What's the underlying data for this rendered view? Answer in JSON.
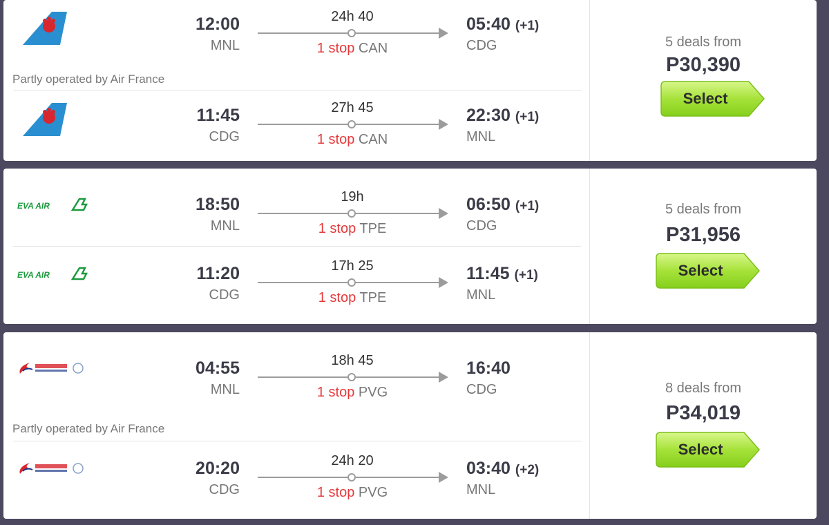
{
  "colors": {
    "accent_green": "#9be234",
    "stop_red": "#e5393b",
    "background": "#4b485f"
  },
  "results": [
    {
      "legs": [
        {
          "airline": "China Southern",
          "logo": "china-southern-logo",
          "dep_time": "12:00",
          "dep_airport": "MNL",
          "duration": "24h 40",
          "stops": "1 stop",
          "via": "CAN",
          "arr_time": "05:40",
          "arr_offset": "(+1)",
          "arr_airport": "CDG"
        },
        {
          "airline": "China Southern",
          "logo": "china-southern-logo",
          "dep_time": "11:45",
          "dep_airport": "CDG",
          "duration": "27h 45",
          "stops": "1 stop",
          "via": "CAN",
          "arr_time": "22:30",
          "arr_offset": "(+1)",
          "arr_airport": "MNL"
        }
      ],
      "note": "Partly operated by Air France",
      "deals": "5 deals from",
      "price": "P30,390",
      "select_label": "Select"
    },
    {
      "legs": [
        {
          "airline": "EVA AIR",
          "logo": "eva-air-logo",
          "dep_time": "18:50",
          "dep_airport": "MNL",
          "duration": "19h",
          "stops": "1 stop",
          "via": "TPE",
          "arr_time": "06:50",
          "arr_offset": "(+1)",
          "arr_airport": "CDG"
        },
        {
          "airline": "EVA AIR",
          "logo": "eva-air-logo",
          "dep_time": "11:20",
          "dep_airport": "CDG",
          "duration": "17h 25",
          "stops": "1 stop",
          "via": "TPE",
          "arr_time": "11:45",
          "arr_offset": "(+1)",
          "arr_airport": "MNL"
        }
      ],
      "note": "",
      "deals": "5 deals from",
      "price": "P31,956",
      "select_label": "Select"
    },
    {
      "legs": [
        {
          "airline": "China Eastern",
          "logo": "china-eastern-logo",
          "dep_time": "04:55",
          "dep_airport": "MNL",
          "duration": "18h 45",
          "stops": "1 stop",
          "via": "PVG",
          "arr_time": "16:40",
          "arr_offset": "",
          "arr_airport": "CDG"
        },
        {
          "airline": "China Eastern",
          "logo": "china-eastern-logo",
          "dep_time": "20:20",
          "dep_airport": "CDG",
          "duration": "24h 20",
          "stops": "1 stop",
          "via": "PVG",
          "arr_time": "03:40",
          "arr_offset": "(+2)",
          "arr_airport": "MNL"
        }
      ],
      "note": "Partly operated by Air France",
      "deals": "8 deals from",
      "price": "P34,019",
      "select_label": "Select"
    }
  ]
}
